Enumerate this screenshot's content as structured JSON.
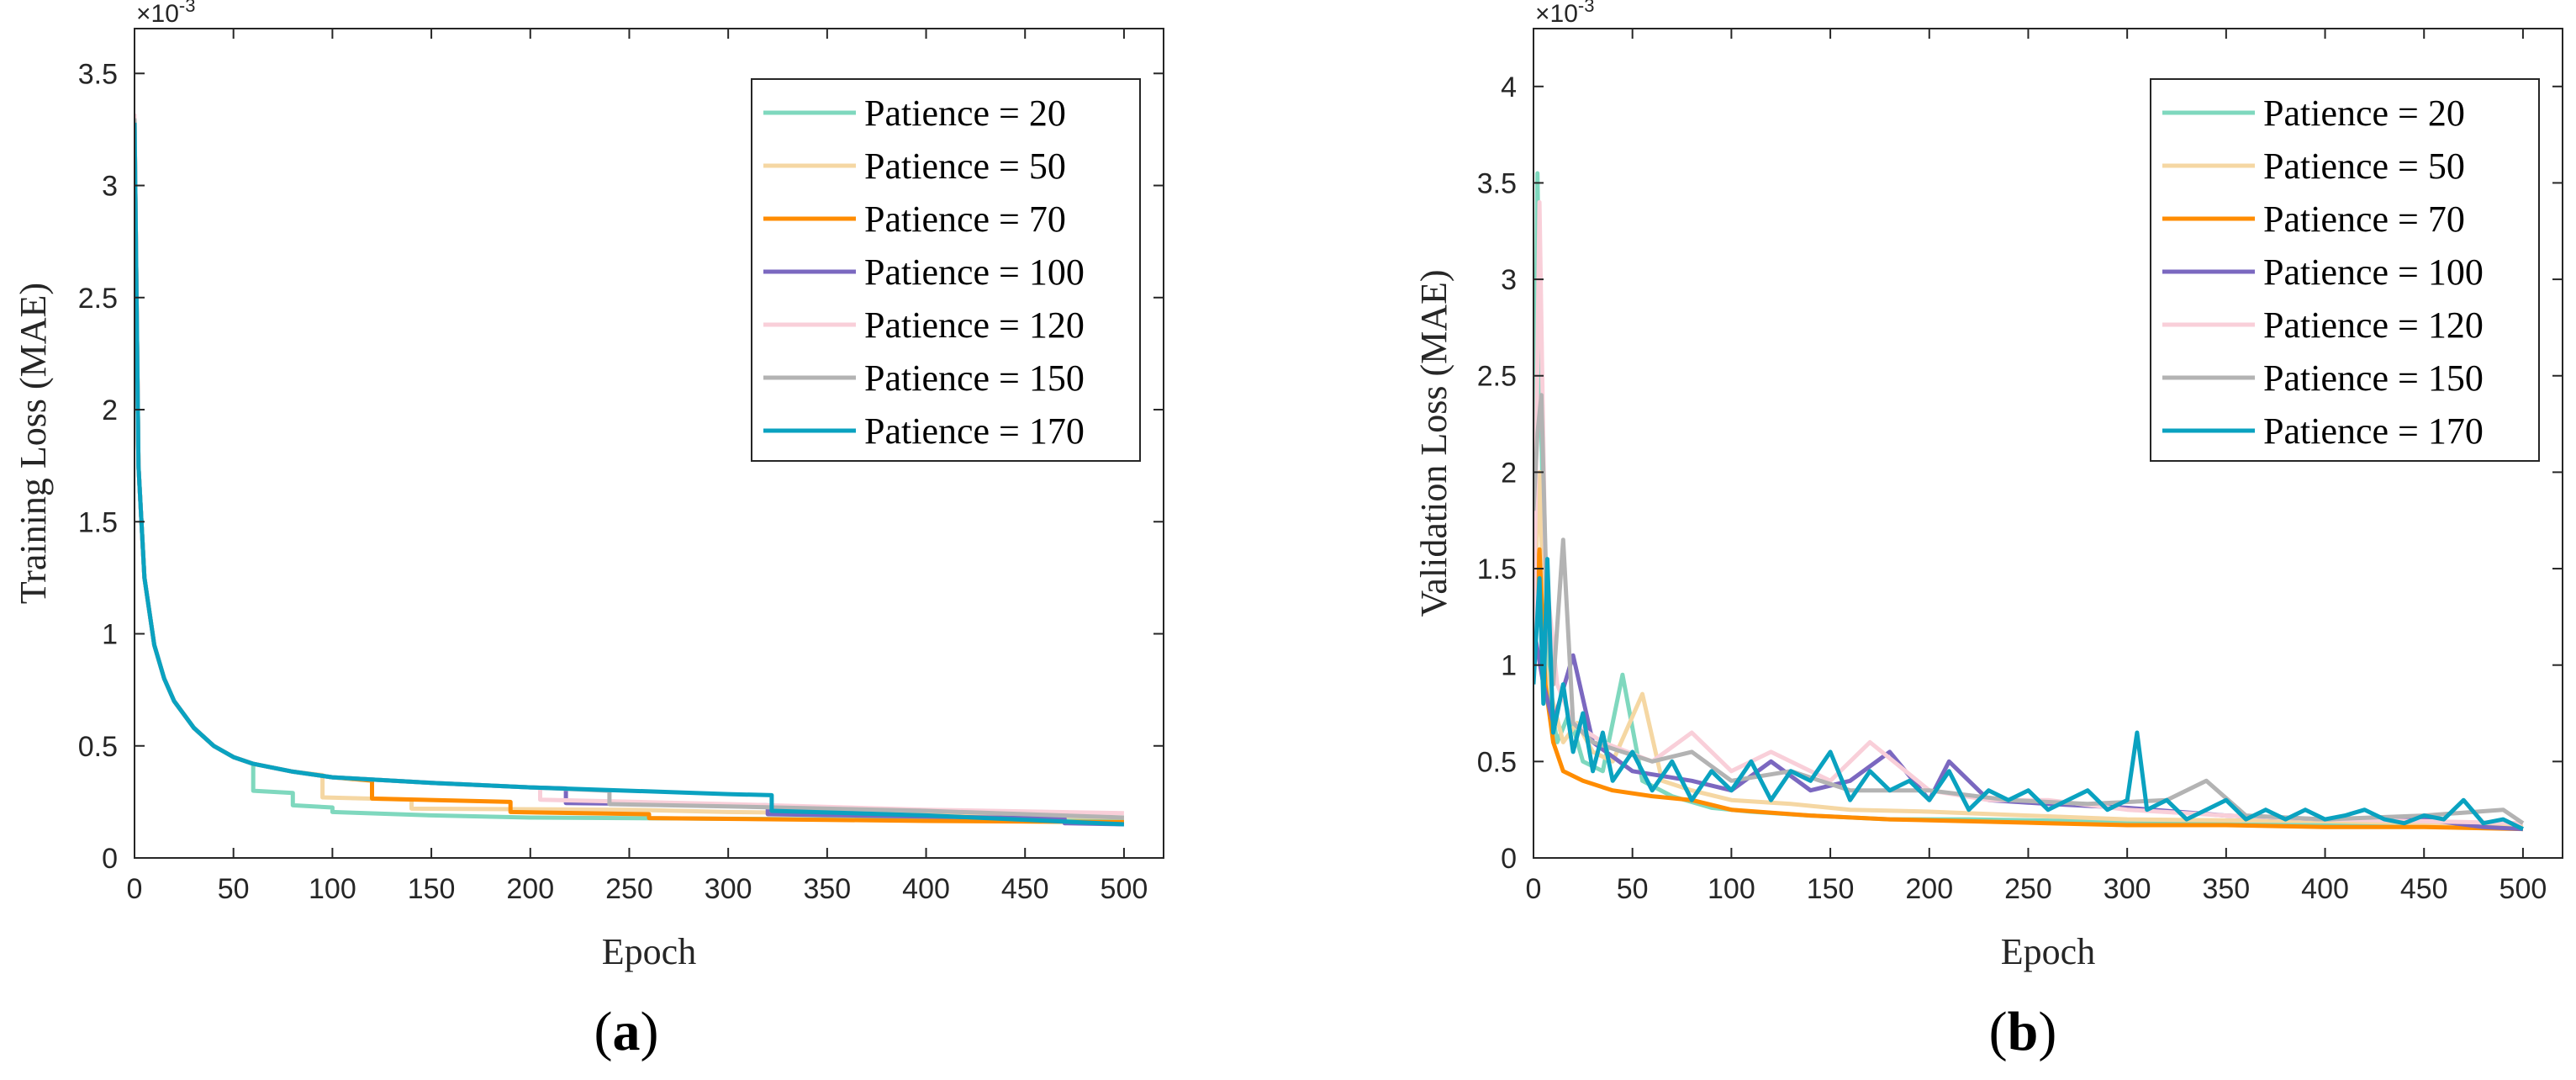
{
  "chart_data": [
    {
      "type": "line",
      "panel_label": {
        "open": "(",
        "letter": "a",
        "close": ")"
      },
      "xlabel": "Epoch",
      "ylabel": "Training Loss (MAE)",
      "y_exponent": "×10",
      "y_exponent_power": "-3",
      "xlim": [
        0,
        520
      ],
      "ylim": [
        0,
        3.7
      ],
      "xticks": [
        0,
        50,
        100,
        150,
        200,
        250,
        300,
        350,
        400,
        450,
        500
      ],
      "yticks": [
        0,
        0.5,
        1,
        1.5,
        2,
        2.5,
        3,
        3.5
      ],
      "ytick_labels": [
        "0",
        "0.5",
        "1",
        "1.5",
        "2",
        "2.5",
        "3",
        "3.5"
      ],
      "legend_position": "top-right",
      "series": [
        {
          "name": "Patience = 20",
          "color": "#7fd8be",
          "x": [
            0,
            2,
            5,
            10,
            15,
            20,
            30,
            40,
            50,
            60,
            60,
            80,
            80,
            100,
            100,
            150,
            200,
            300,
            400,
            500
          ],
          "y": [
            3.3,
            1.75,
            1.25,
            0.95,
            0.8,
            0.7,
            0.58,
            0.5,
            0.45,
            0.42,
            0.3,
            0.29,
            0.235,
            0.225,
            0.205,
            0.19,
            0.18,
            0.175,
            0.17,
            0.165
          ]
        },
        {
          "name": "Patience = 50",
          "color": "#f5d7a3",
          "x": [
            0,
            2,
            5,
            10,
            15,
            20,
            30,
            40,
            50,
            60,
            80,
            95,
            95,
            140,
            140,
            250,
            300,
            400,
            500
          ],
          "y": [
            3.3,
            1.75,
            1.25,
            0.95,
            0.8,
            0.7,
            0.58,
            0.5,
            0.45,
            0.42,
            0.385,
            0.37,
            0.27,
            0.26,
            0.22,
            0.215,
            0.205,
            0.195,
            0.18
          ]
        },
        {
          "name": "Patience = 70",
          "color": "#ff8c00",
          "x": [
            0,
            2,
            5,
            10,
            15,
            20,
            30,
            40,
            50,
            60,
            80,
            100,
            120,
            120,
            190,
            190,
            260,
            260,
            350,
            400,
            500
          ],
          "y": [
            3.3,
            1.75,
            1.25,
            0.95,
            0.8,
            0.7,
            0.58,
            0.5,
            0.45,
            0.42,
            0.385,
            0.36,
            0.345,
            0.265,
            0.25,
            0.205,
            0.195,
            0.178,
            0.17,
            0.165,
            0.16
          ]
        },
        {
          "name": "Patience = 100",
          "color": "#7b68c0",
          "x": [
            0,
            2,
            5,
            10,
            15,
            20,
            30,
            40,
            50,
            60,
            80,
            100,
            150,
            200,
            218,
            218,
            320,
            320,
            400,
            470,
            470,
            500
          ],
          "y": [
            3.3,
            1.75,
            1.25,
            0.95,
            0.8,
            0.7,
            0.58,
            0.5,
            0.45,
            0.42,
            0.385,
            0.36,
            0.335,
            0.315,
            0.31,
            0.245,
            0.235,
            0.195,
            0.185,
            0.175,
            0.155,
            0.15
          ]
        },
        {
          "name": "Patience = 120",
          "color": "#f9cfd9",
          "x": [
            0,
            2,
            5,
            10,
            15,
            20,
            30,
            40,
            50,
            60,
            80,
            100,
            150,
            200,
            205,
            205,
            300,
            400,
            500
          ],
          "y": [
            3.32,
            1.75,
            1.25,
            0.95,
            0.8,
            0.7,
            0.58,
            0.5,
            0.45,
            0.42,
            0.385,
            0.36,
            0.335,
            0.315,
            0.312,
            0.26,
            0.24,
            0.215,
            0.2
          ]
        },
        {
          "name": "Patience = 150",
          "color": "#b3b3b3",
          "x": [
            0,
            2,
            5,
            10,
            15,
            20,
            30,
            40,
            50,
            60,
            80,
            100,
            150,
            200,
            240,
            240,
            300,
            400,
            500
          ],
          "y": [
            3.3,
            1.75,
            1.25,
            0.95,
            0.8,
            0.7,
            0.58,
            0.5,
            0.45,
            0.42,
            0.385,
            0.36,
            0.335,
            0.315,
            0.3,
            0.24,
            0.23,
            0.21,
            0.18
          ]
        },
        {
          "name": "Patience = 170",
          "color": "#0aa2c0",
          "x": [
            0,
            2,
            5,
            10,
            15,
            20,
            30,
            40,
            50,
            60,
            80,
            100,
            150,
            200,
            250,
            300,
            322,
            322,
            400,
            500
          ],
          "y": [
            3.28,
            1.75,
            1.25,
            0.95,
            0.8,
            0.7,
            0.58,
            0.5,
            0.45,
            0.42,
            0.385,
            0.36,
            0.335,
            0.315,
            0.3,
            0.285,
            0.28,
            0.21,
            0.19,
            0.15
          ]
        }
      ]
    },
    {
      "type": "line",
      "panel_label": {
        "open": "(",
        "letter": "b",
        "close": ")"
      },
      "xlabel": "Epoch",
      "ylabel": "Validation Loss (MAE)",
      "y_exponent": "×10",
      "y_exponent_power": "-3",
      "xlim": [
        0,
        520
      ],
      "ylim": [
        0,
        4.3
      ],
      "xticks": [
        0,
        50,
        100,
        150,
        200,
        250,
        300,
        350,
        400,
        450,
        500
      ],
      "yticks": [
        0,
        0.5,
        1,
        1.5,
        2,
        2.5,
        3,
        3.5,
        4
      ],
      "ytick_labels": [
        "0",
        "0.5",
        "1",
        "1.5",
        "2",
        "2.5",
        "3",
        "3.5",
        "4"
      ],
      "legend_position": "top-right",
      "series": [
        {
          "name": "Patience = 20",
          "color": "#7fd8be",
          "x": [
            0,
            2,
            4,
            6,
            8,
            12,
            18,
            25,
            35,
            45,
            55,
            70,
            90,
            110,
            140,
            180,
            220,
            280,
            350,
            420,
            500
          ],
          "y": [
            1.5,
            3.55,
            2.2,
            1.2,
            0.85,
            0.6,
            0.75,
            0.5,
            0.45,
            0.95,
            0.4,
            0.32,
            0.26,
            0.24,
            0.22,
            0.2,
            0.2,
            0.19,
            0.18,
            0.17,
            0.16
          ]
        },
        {
          "name": "Patience = 50",
          "color": "#f5d7a3",
          "x": [
            0,
            3,
            6,
            10,
            15,
            22,
            30,
            40,
            55,
            65,
            80,
            100,
            130,
            160,
            200,
            250,
            300,
            400,
            500
          ],
          "y": [
            1.2,
            2.0,
            1.0,
            0.8,
            0.6,
            0.7,
            0.55,
            0.5,
            0.85,
            0.4,
            0.35,
            0.3,
            0.28,
            0.25,
            0.24,
            0.22,
            0.2,
            0.19,
            0.17
          ]
        },
        {
          "name": "Patience = 70",
          "color": "#ff8c00",
          "x": [
            0,
            3,
            6,
            10,
            15,
            25,
            40,
            60,
            80,
            100,
            140,
            180,
            220,
            260,
            300,
            350,
            400,
            450,
            500
          ],
          "y": [
            1.3,
            1.6,
            0.9,
            0.6,
            0.45,
            0.4,
            0.35,
            0.32,
            0.3,
            0.25,
            0.22,
            0.2,
            0.19,
            0.18,
            0.17,
            0.17,
            0.16,
            0.16,
            0.15
          ]
        },
        {
          "name": "Patience = 100",
          "color": "#7b68c0",
          "x": [
            0,
            5,
            10,
            20,
            30,
            50,
            80,
            100,
            120,
            140,
            160,
            180,
            200,
            210,
            230,
            260,
            300,
            350,
            400,
            450,
            480,
            500
          ],
          "y": [
            1.2,
            0.9,
            0.7,
            1.05,
            0.6,
            0.45,
            0.4,
            0.35,
            0.5,
            0.35,
            0.4,
            0.55,
            0.3,
            0.5,
            0.3,
            0.28,
            0.26,
            0.22,
            0.2,
            0.2,
            0.16,
            0.15
          ]
        },
        {
          "name": "Patience = 120",
          "color": "#f9cfd9",
          "x": [
            0,
            3,
            6,
            12,
            20,
            35,
            60,
            80,
            100,
            120,
            150,
            170,
            200,
            230,
            260,
            300,
            350,
            400,
            450,
            500
          ],
          "y": [
            1.0,
            3.4,
            1.5,
            0.9,
            0.7,
            0.6,
            0.5,
            0.65,
            0.45,
            0.55,
            0.4,
            0.6,
            0.35,
            0.3,
            0.3,
            0.25,
            0.22,
            0.2,
            0.19,
            0.18
          ]
        },
        {
          "name": "Patience = 150",
          "color": "#b3b3b3",
          "x": [
            0,
            2,
            4,
            7,
            10,
            15,
            20,
            30,
            45,
            60,
            80,
            100,
            130,
            160,
            200,
            240,
            280,
            320,
            340,
            360,
            400,
            450,
            490,
            500
          ],
          "y": [
            1.8,
            2.2,
            2.4,
            1.2,
            0.9,
            1.65,
            0.7,
            0.6,
            0.55,
            0.5,
            0.55,
            0.4,
            0.45,
            0.35,
            0.35,
            0.3,
            0.28,
            0.3,
            0.4,
            0.22,
            0.2,
            0.22,
            0.25,
            0.18
          ]
        },
        {
          "name": "Patience = 170",
          "color": "#0aa2c0",
          "x": [
            0,
            3,
            5,
            7,
            10,
            15,
            20,
            25,
            30,
            35,
            40,
            50,
            60,
            70,
            80,
            90,
            100,
            110,
            120,
            130,
            140,
            150,
            160,
            170,
            180,
            190,
            200,
            210,
            220,
            230,
            240,
            250,
            260,
            270,
            280,
            290,
            300,
            305,
            310,
            320,
            330,
            340,
            350,
            360,
            370,
            380,
            390,
            400,
            410,
            420,
            430,
            440,
            450,
            460,
            470,
            480,
            490,
            500
          ],
          "y": [
            0.9,
            1.45,
            0.8,
            1.55,
            0.65,
            0.9,
            0.55,
            0.75,
            0.45,
            0.65,
            0.4,
            0.55,
            0.35,
            0.5,
            0.3,
            0.45,
            0.35,
            0.5,
            0.3,
            0.45,
            0.4,
            0.55,
            0.3,
            0.45,
            0.35,
            0.4,
            0.3,
            0.45,
            0.25,
            0.35,
            0.3,
            0.35,
            0.25,
            0.3,
            0.35,
            0.25,
            0.3,
            0.65,
            0.25,
            0.3,
            0.2,
            0.25,
            0.3,
            0.2,
            0.25,
            0.2,
            0.25,
            0.2,
            0.22,
            0.25,
            0.2,
            0.18,
            0.22,
            0.2,
            0.3,
            0.18,
            0.2,
            0.15
          ]
        }
      ]
    }
  ]
}
